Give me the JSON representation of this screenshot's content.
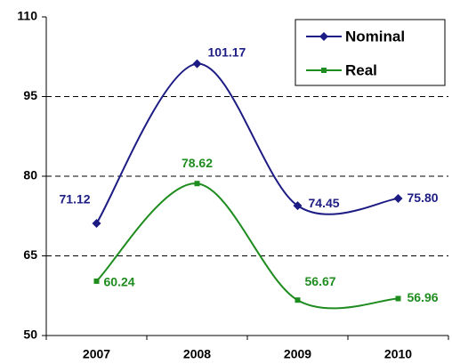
{
  "chart_data": {
    "type": "line",
    "categories": [
      "2007",
      "2008",
      "2009",
      "2010"
    ],
    "series": [
      {
        "name": "Nominal",
        "color": "#1c1c84",
        "marker": "diamond",
        "values": [
          71.12,
          101.17,
          74.45,
          75.8
        ],
        "value_labels": [
          "71.12",
          "101.17",
          "74.45",
          "75.80"
        ]
      },
      {
        "name": "Real",
        "color": "#1e8c1e",
        "marker": "square",
        "values": [
          60.24,
          78.62,
          56.67,
          56.96
        ],
        "value_labels": [
          "60.24",
          "78.62",
          "56.67",
          "56.96"
        ]
      }
    ],
    "ylim": [
      50,
      110
    ],
    "yticks": [
      50,
      65,
      80,
      95,
      110
    ],
    "grid": true,
    "smooth": true,
    "legend": "upper right"
  }
}
